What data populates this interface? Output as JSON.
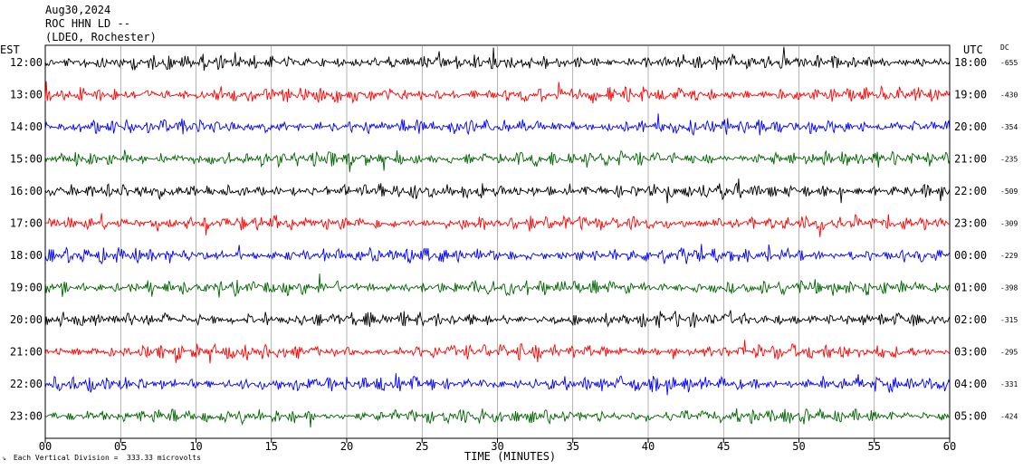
{
  "header": {
    "date": "Aug30,2024",
    "station": "ROC HHN LD --",
    "location": "(LDEO, Rochester)"
  },
  "labels": {
    "left_timezone": "EST",
    "right_timezone": "UTC",
    "dc_header": "DC",
    "x_axis_title": "TIME (MINUTES)",
    "scale_note": "Each Vertical Division =  333.33 microvolts"
  },
  "colors": {
    "trace_cycle": [
      "#000000",
      "#ff0000",
      "#0000ff",
      "#006400"
    ],
    "grid": "#808080"
  },
  "chart_data": {
    "type": "line",
    "title": "Aug30,2024 ROC HHN LD -- (LDEO, Rochester)",
    "xlabel": "TIME (MINUTES)",
    "xlim": [
      0,
      60
    ],
    "x_ticks": [
      "00",
      "05",
      "10",
      "15",
      "20",
      "25",
      "30",
      "35",
      "40",
      "45",
      "50",
      "55",
      "60"
    ],
    "rows": [
      {
        "est": "12:00",
        "utc": "18:00",
        "dc": "-655",
        "color": "#000000"
      },
      {
        "est": "13:00",
        "utc": "19:00",
        "dc": "-430",
        "color": "#ff0000"
      },
      {
        "est": "14:00",
        "utc": "20:00",
        "dc": "-354",
        "color": "#0000ff"
      },
      {
        "est": "15:00",
        "utc": "21:00",
        "dc": "-235",
        "color": "#006400"
      },
      {
        "est": "16:00",
        "utc": "22:00",
        "dc": "-509",
        "color": "#000000"
      },
      {
        "est": "17:00",
        "utc": "23:00",
        "dc": "-309",
        "color": "#ff0000"
      },
      {
        "est": "18:00",
        "utc": "00:00",
        "dc": "-229",
        "color": "#0000ff"
      },
      {
        "est": "19:00",
        "utc": "01:00",
        "dc": "-398",
        "color": "#006400"
      },
      {
        "est": "20:00",
        "utc": "02:00",
        "dc": "-315",
        "color": "#000000"
      },
      {
        "est": "21:00",
        "utc": "03:00",
        "dc": "-295",
        "color": "#ff0000"
      },
      {
        "est": "22:00",
        "utc": "04:00",
        "dc": "-331",
        "color": "#0000ff"
      },
      {
        "est": "23:00",
        "utc": "05:00",
        "dc": "-424",
        "color": "#006400"
      }
    ],
    "grid": true
  }
}
